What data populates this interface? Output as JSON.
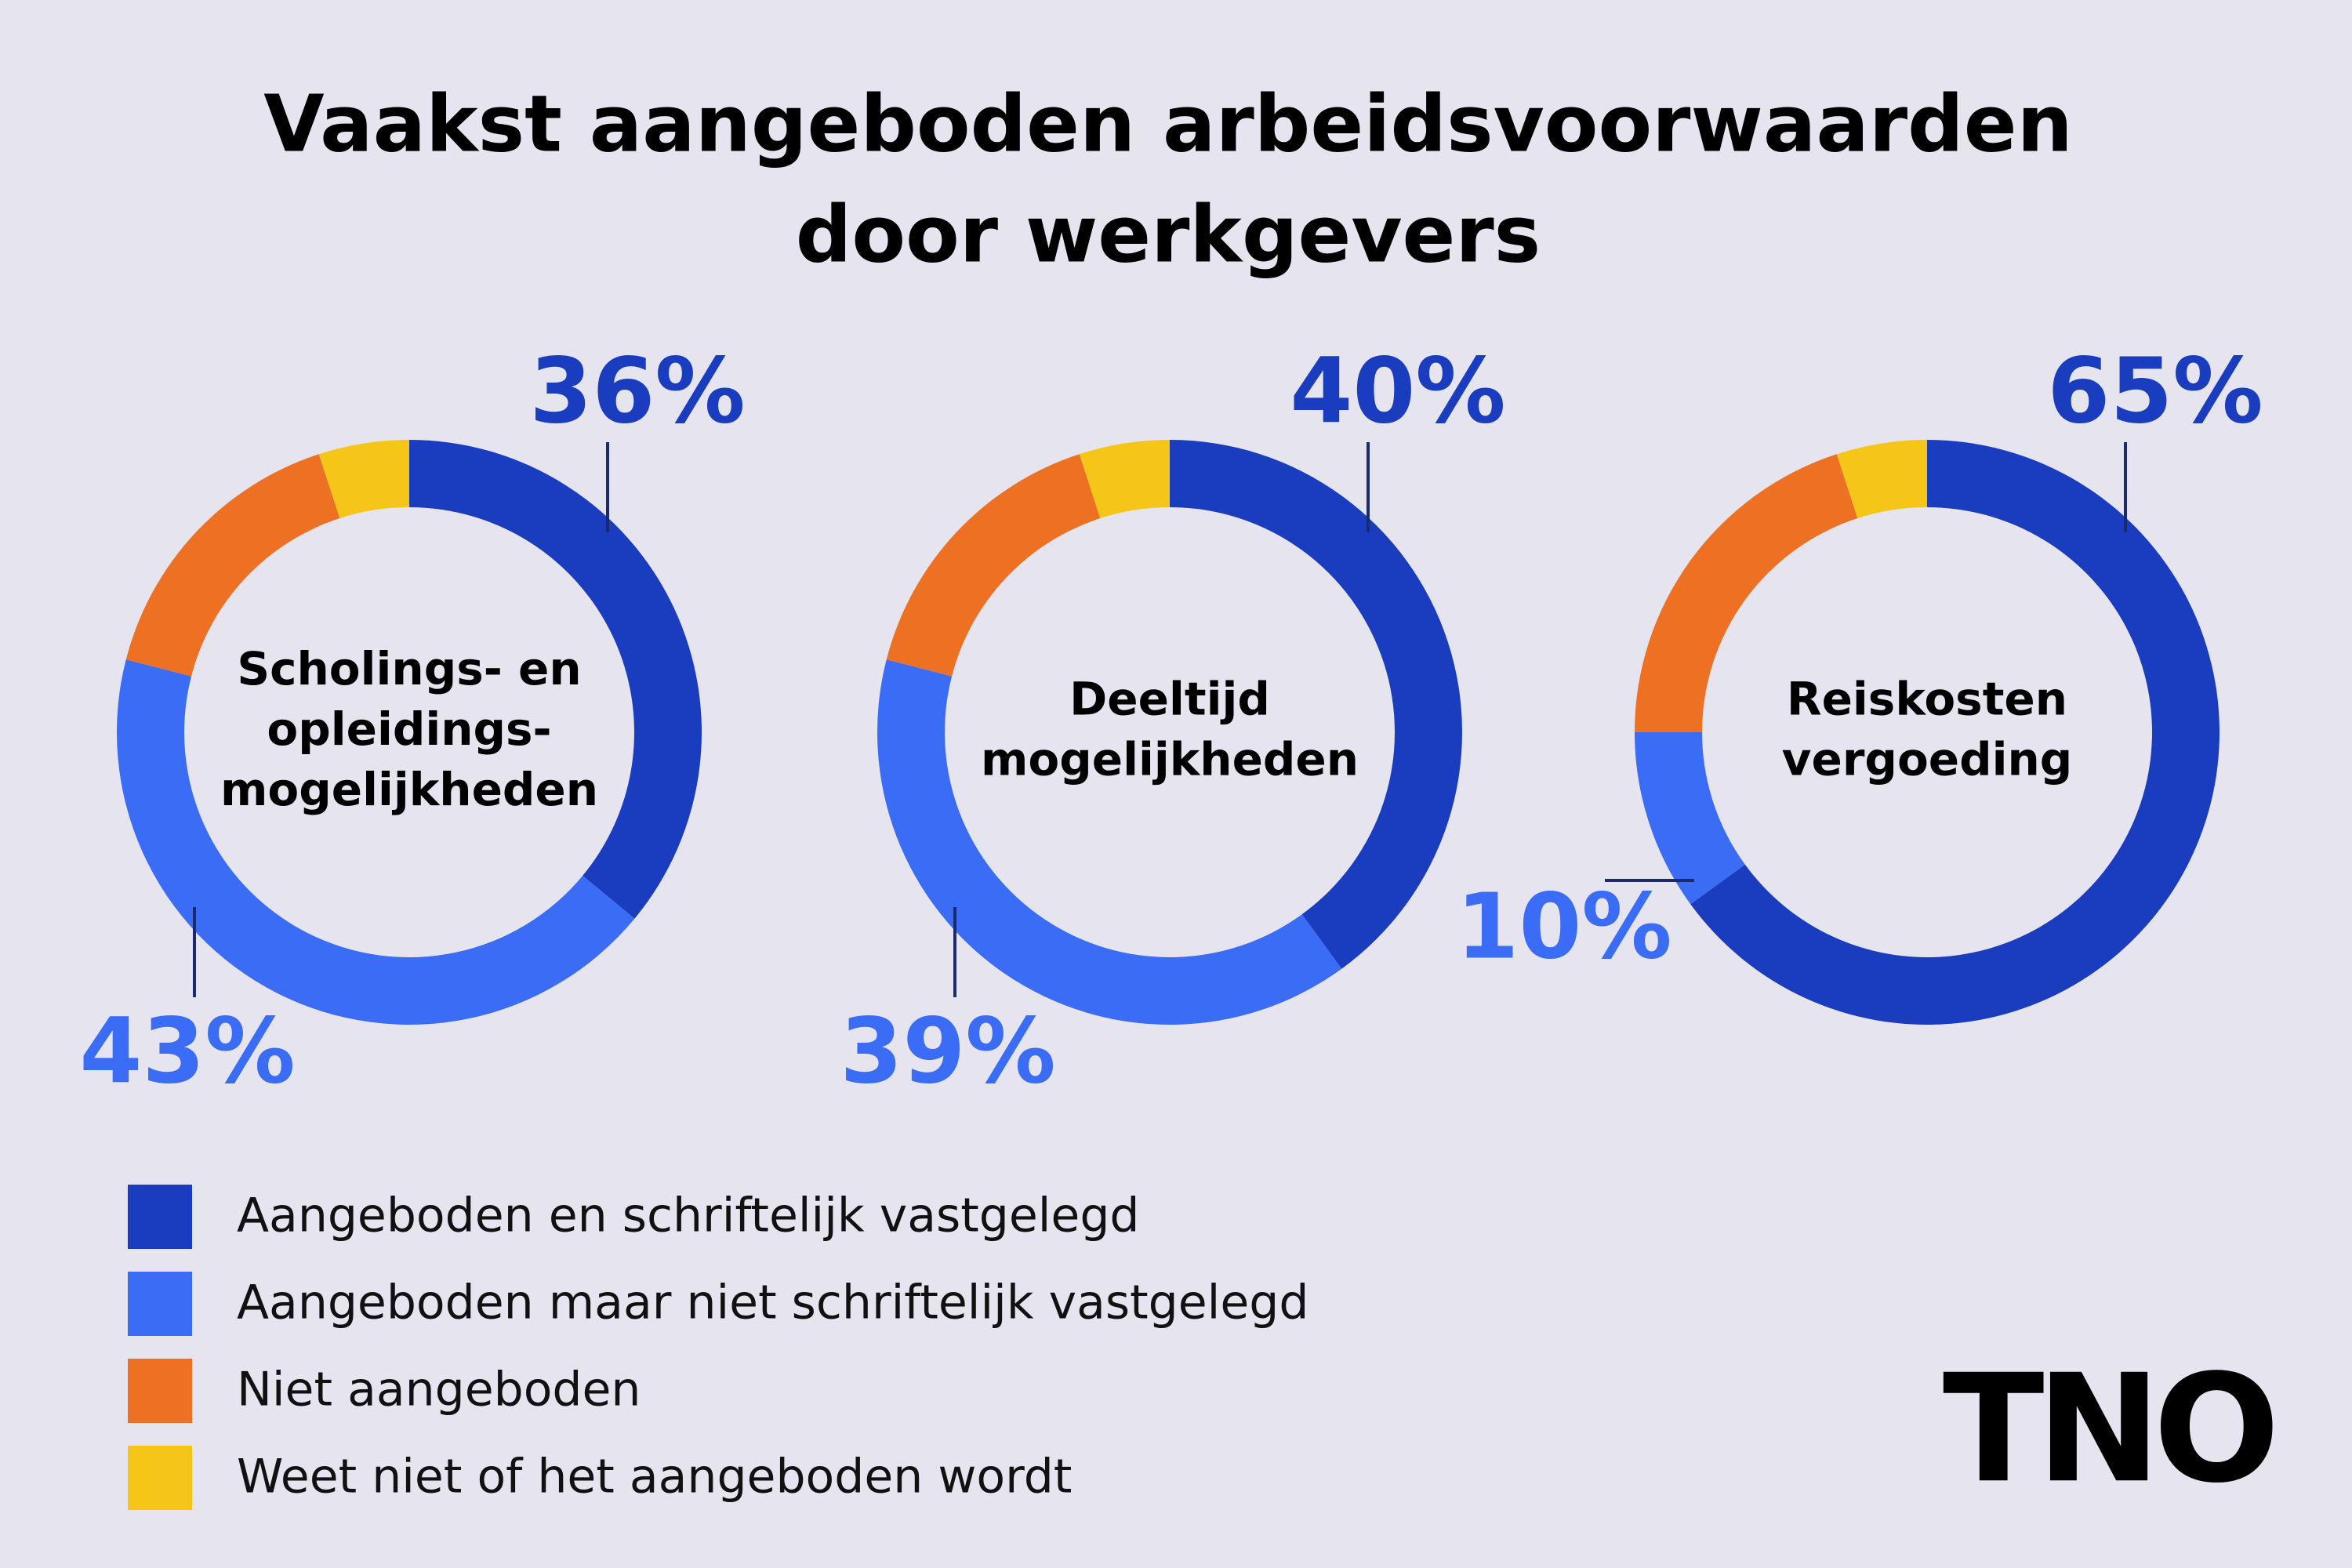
{
  "title": [
    "Vaakst aangeboden arbeidsvoorwaarden",
    "door werkgevers"
  ],
  "logo": "TNO",
  "chart_data": [
    {
      "type": "donut",
      "title": [
        "Scholings- en",
        "opleidings-",
        "mogelijkheden"
      ],
      "categories": [
        "Aangeboden en schriftelijk vastgelegd",
        "Aangeboden maar niet schriftelijk vastgelegd",
        "Niet aangeboden",
        "Weet niet of het aangeboden wordt"
      ],
      "values": [
        36,
        43,
        16,
        5
      ],
      "value_labels": [
        "36%",
        "43%",
        null,
        null
      ],
      "colors": [
        "#1a3dbf",
        "#3a6cf5",
        "#ee7023",
        "#f5c518"
      ]
    },
    {
      "type": "donut",
      "title": [
        "Deeltijd",
        "mogelijkheden"
      ],
      "categories": [
        "Aangeboden en schriftelijk vastgelegd",
        "Aangeboden maar niet schriftelijk vastgelegd",
        "Niet aangeboden",
        "Weet niet of het aangeboden wordt"
      ],
      "values": [
        40,
        39,
        16,
        5
      ],
      "value_labels": [
        "40%",
        "39%",
        null,
        null
      ],
      "colors": [
        "#1a3dbf",
        "#3a6cf5",
        "#ee7023",
        "#f5c518"
      ]
    },
    {
      "type": "donut",
      "title": [
        "Reiskosten",
        "vergoeding"
      ],
      "categories": [
        "Aangeboden en schriftelijk vastgelegd",
        "Aangeboden maar niet schriftelijk vastgelegd",
        "Niet aangeboden",
        "Weet niet of het aangeboden wordt"
      ],
      "values": [
        65,
        10,
        20,
        5
      ],
      "value_labels": [
        "65%",
        "10%",
        null,
        null
      ],
      "colors": [
        "#1a3dbf",
        "#3a6cf5",
        "#ee7023",
        "#f5c518"
      ]
    }
  ]
}
